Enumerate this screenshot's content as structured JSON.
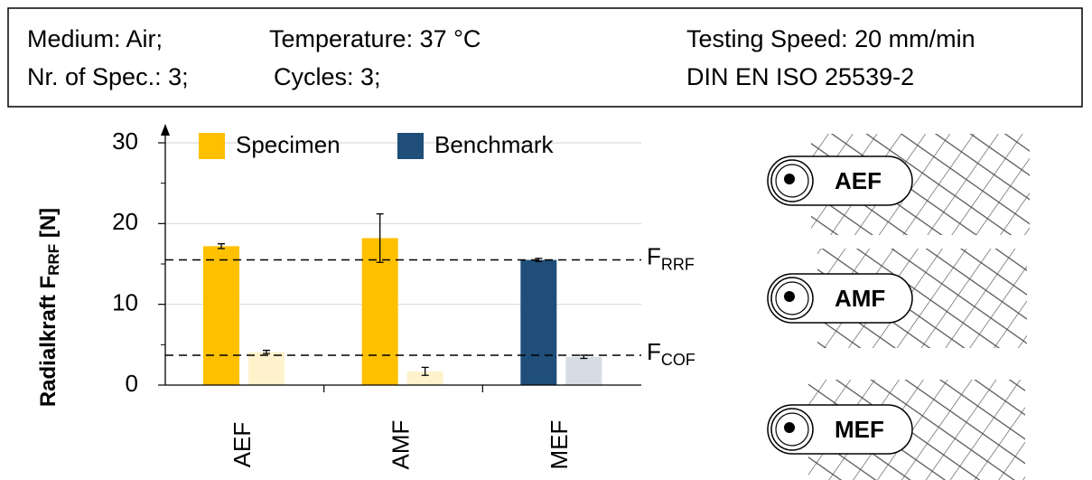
{
  "header": {
    "line1": [
      "Medium:  Air;",
      "Temperature:  37 °C",
      "Testing Speed:  20 mm/min"
    ],
    "line2": [
      "Nr. of Spec.: 3;",
      "Cycles: 3;",
      "DIN EN ISO 25539-2"
    ]
  },
  "chart_data": {
    "type": "bar",
    "ylabel": "Radialkraft  F",
    "ylabel_sub": "RRF",
    "ylabel_unit": " [N]",
    "ylim": [
      0,
      30
    ],
    "yticks": [
      0,
      10,
      20,
      30
    ],
    "minor_yticks": [
      5,
      15,
      25
    ],
    "grid": true,
    "series": [
      {
        "name": "Specimen",
        "color": "#FFC000",
        "light_color": "#FFF2CC",
        "categories": [
          "AEF",
          "AMF"
        ],
        "rrf": [
          17.2,
          18.2
        ],
        "rrf_err": [
          0.3,
          3.0
        ],
        "cof": [
          4.1,
          1.7
        ],
        "cof_err": [
          0.2,
          0.5
        ]
      },
      {
        "name": "Benchmark",
        "color": "#1F4E79",
        "light_color": "#D6DCE4",
        "categories": [
          "MEF"
        ],
        "rrf": [
          15.5
        ],
        "rrf_err": [
          0.2
        ],
        "cof": [
          3.5
        ],
        "cof_err": [
          0.2
        ]
      }
    ],
    "reference_lines": [
      {
        "value": 15.5,
        "label": "F",
        "sub": "RRF"
      },
      {
        "value": 3.7,
        "label": "F",
        "sub": "COF"
      }
    ]
  },
  "images": [
    {
      "label": "AEF"
    },
    {
      "label": "AMF"
    },
    {
      "label": "MEF"
    }
  ]
}
